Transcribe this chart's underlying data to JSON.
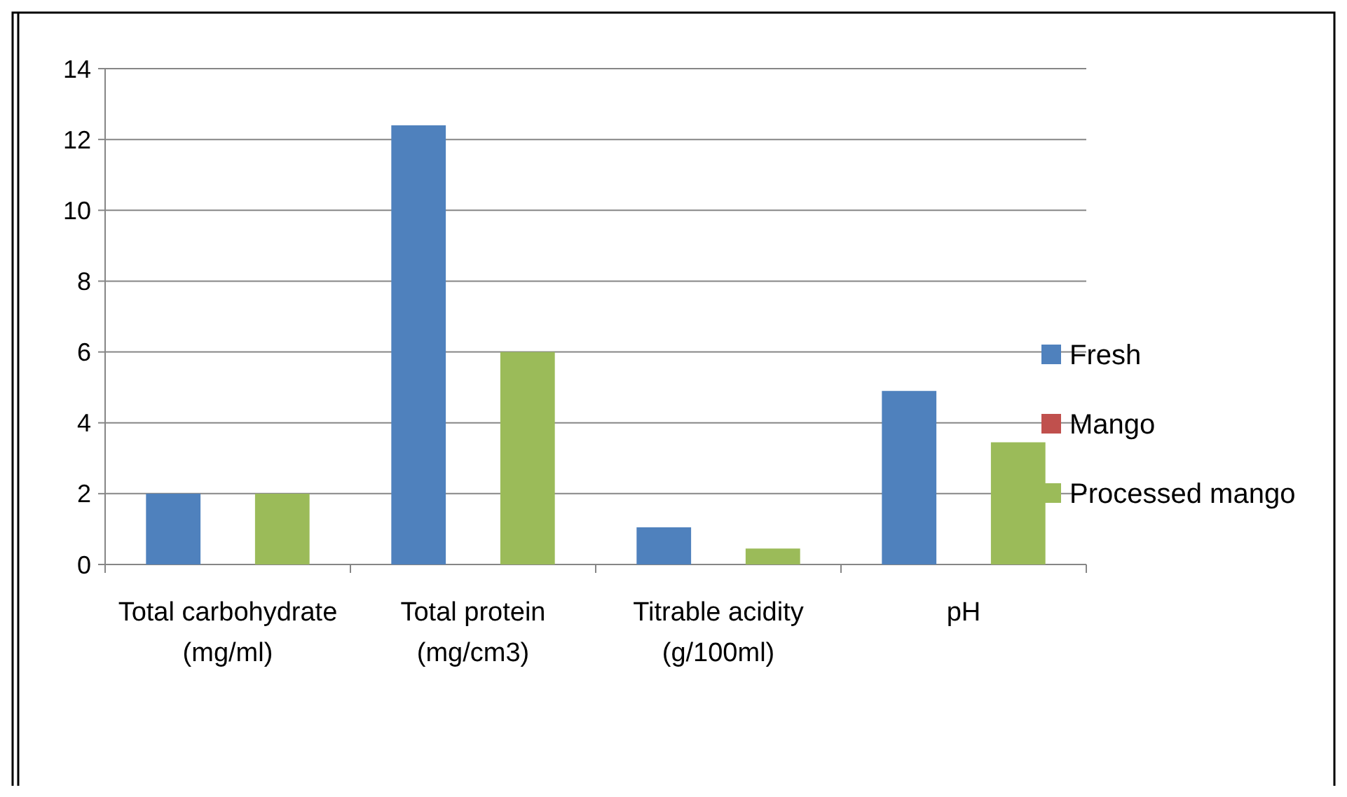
{
  "chart_data": {
    "type": "bar",
    "categories": [
      "Total carbohydrate (mg/ml)",
      "Total protein (mg/cm3)",
      "Titrable acidity (g/100ml)",
      "pH"
    ],
    "series": [
      {
        "name": "Fresh",
        "color": "#4f81bd",
        "values": [
          2,
          12.4,
          1.05,
          4.9
        ]
      },
      {
        "name": "Mango",
        "color": "#c0504d",
        "values": [
          null,
          null,
          null,
          null
        ]
      },
      {
        "name": "Processed mango",
        "color": "#9bbb59",
        "values": [
          2,
          6,
          0.45,
          3.45
        ]
      }
    ],
    "ylim": [
      0,
      14
    ],
    "yticks": [
      0,
      2,
      4,
      6,
      8,
      10,
      12,
      14
    ],
    "grid": "y",
    "legend": "right"
  }
}
